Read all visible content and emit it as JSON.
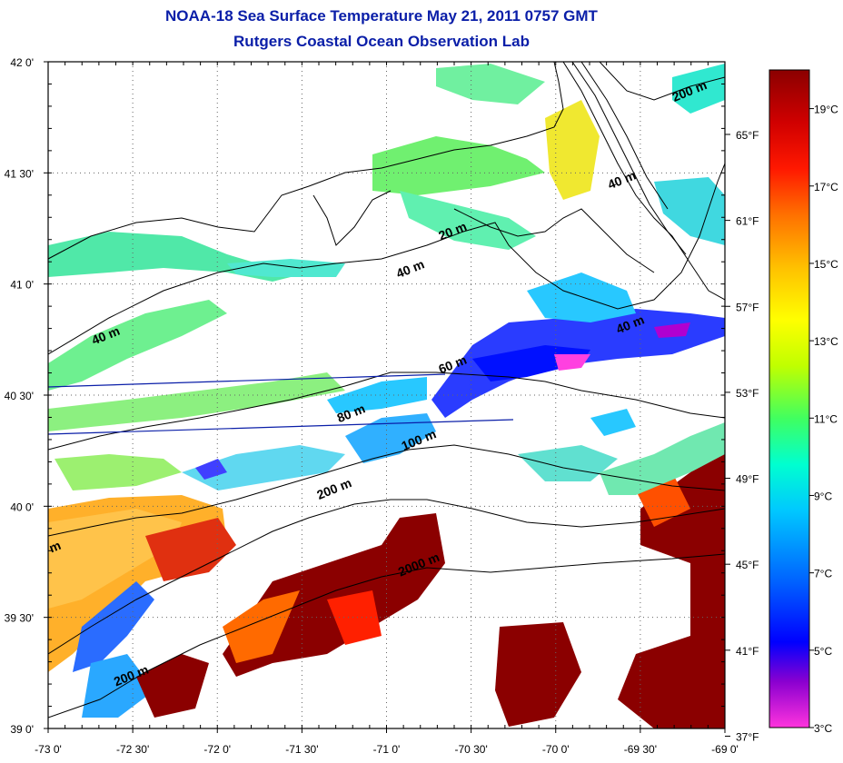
{
  "title": {
    "line1": "NOAA-18 Sea Surface Temperature May 21, 2011 0757 GMT",
    "line2": "Rutgers Coastal Ocean Observation Lab"
  },
  "map": {
    "lon_range": [
      -73.0,
      -69.0
    ],
    "lat_range": [
      39.0,
      42.0
    ],
    "grid": "dotted",
    "lon_ticks": [
      "-73 0'",
      "-72 30'",
      "-72 0'",
      "-71 30'",
      "-71 0'",
      "-70 30'",
      "-70 0'",
      "-69 30'",
      "-69 0'"
    ],
    "lat_ticks": [
      "39 0'",
      "39 30'",
      "40 0'",
      "40 30'",
      "41 0'",
      "41 30'",
      "42 0'"
    ],
    "depth_labels": [
      {
        "text": "200 m",
        "lon": -69.2,
        "lat": 41.85
      },
      {
        "text": "40 m",
        "lon": -69.6,
        "lat": 41.45
      },
      {
        "text": "20 m",
        "lon": -70.6,
        "lat": 41.22
      },
      {
        "text": "40 m",
        "lon": -70.85,
        "lat": 41.05
      },
      {
        "text": "40 m",
        "lon": -72.65,
        "lat": 40.75
      },
      {
        "text": "40 m",
        "lon": -69.55,
        "lat": 40.8
      },
      {
        "text": "60 m",
        "lon": -70.6,
        "lat": 40.62
      },
      {
        "text": "80 m",
        "lon": -71.2,
        "lat": 40.4
      },
      {
        "text": "100 m",
        "lon": -70.8,
        "lat": 40.28
      },
      {
        "text": "200 m",
        "lon": -71.3,
        "lat": 40.06
      },
      {
        "text": "2000 m",
        "lon": -70.8,
        "lat": 39.72
      },
      {
        "text": "200 m",
        "lon": -72.5,
        "lat": 39.22
      },
      {
        "text": "m",
        "lon": -72.95,
        "lat": 39.8
      }
    ]
  },
  "colorbar": {
    "celsius_labels": [
      "19°C",
      "17°C",
      "15°C",
      "13°C",
      "11°C",
      "9°C",
      "7°C",
      "5°C",
      "3°C"
    ],
    "fahrenheit_labels": [
      "65°F",
      "61°F",
      "57°F",
      "53°F",
      "49°F",
      "45°F",
      "41°F",
      "37°F"
    ],
    "celsius_values": [
      19,
      17,
      15,
      13,
      11,
      9,
      7,
      5,
      3
    ],
    "fahrenheit_values": [
      65,
      61,
      57,
      53,
      49,
      45,
      41,
      37
    ],
    "range_c": [
      3,
      20
    ],
    "colors": [
      "#ff33dd",
      "#8a00d0",
      "#0000ff",
      "#0060ff",
      "#00c8ff",
      "#00ffd0",
      "#40ff60",
      "#c0ff00",
      "#ffff00",
      "#ffc000",
      "#ff7000",
      "#ff1800",
      "#d00000",
      "#8b0000"
    ]
  }
}
